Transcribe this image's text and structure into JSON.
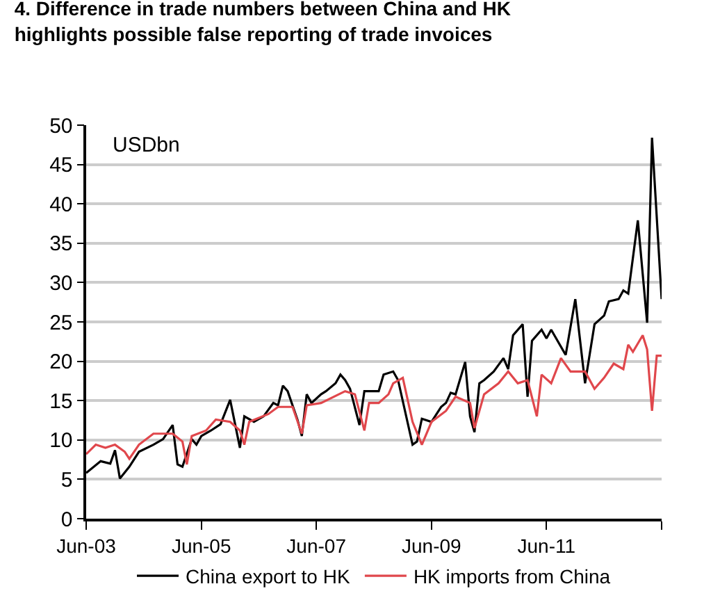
{
  "chart_data": {
    "type": "line",
    "title": "4. Difference in trade numbers between China and HK highlights possible false reporting of trade invoices",
    "annotations": [
      "USDbn"
    ],
    "series": [
      {
        "name": "China export to HK",
        "color": "#000000",
        "x": [
          "2003-06",
          "2003-09",
          "2003-11",
          "2003-12",
          "2004-01",
          "2004-03",
          "2004-05",
          "2004-08",
          "2004-10",
          "2004-12",
          "2005-01",
          "2005-02",
          "2005-04",
          "2005-05",
          "2005-06",
          "2005-08",
          "2005-10",
          "2005-12",
          "2006-02",
          "2006-03",
          "2006-05",
          "2006-07",
          "2006-09",
          "2006-10",
          "2006-11",
          "2006-12",
          "2007-02",
          "2007-03",
          "2007-04",
          "2007-05",
          "2007-07",
          "2007-08",
          "2007-10",
          "2007-11",
          "2007-12",
          "2008-01",
          "2008-03",
          "2008-04",
          "2008-07",
          "2008-08",
          "2008-10",
          "2008-11",
          "2009-02",
          "2009-03",
          "2009-04",
          "2009-06",
          "2009-08",
          "2009-09",
          "2009-10",
          "2009-11",
          "2010-01",
          "2010-02",
          "2010-03",
          "2010-04",
          "2010-05",
          "2010-07",
          "2010-09",
          "2010-10",
          "2010-11",
          "2011-01",
          "2011-02",
          "2011-03",
          "2011-05",
          "2011-06",
          "2011-07",
          "2011-10",
          "2011-12",
          "2012-02",
          "2012-04",
          "2012-06",
          "2012-07",
          "2012-09",
          "2012-10",
          "2012-11",
          "2013-01",
          "2013-03",
          "2013-04",
          "2013-06"
        ],
        "values": [
          5.8,
          7.3,
          7.0,
          8.7,
          5.1,
          6.6,
          8.5,
          9.4,
          10.1,
          11.9,
          6.9,
          6.6,
          10.1,
          9.4,
          10.5,
          11.2,
          12.0,
          15.1,
          9.0,
          13.0,
          12.3,
          13.0,
          14.7,
          14.4,
          16.9,
          16.2,
          12.6,
          10.5,
          15.8,
          14.7,
          15.8,
          16.2,
          17.2,
          18.3,
          17.6,
          16.5,
          11.9,
          16.2,
          16.2,
          18.3,
          18.7,
          17.6,
          9.4,
          9.8,
          12.7,
          12.3,
          14.2,
          14.7,
          16.0,
          15.8,
          19.9,
          13.0,
          11.0,
          17.2,
          17.6,
          18.7,
          20.4,
          19.0,
          23.3,
          24.7,
          15.5,
          22.6,
          24.0,
          22.9,
          24.0,
          20.8,
          27.9,
          17.2,
          24.7,
          25.8,
          27.6,
          27.9,
          29.0,
          28.6,
          37.9,
          24.9,
          48.4,
          27.9
        ]
      },
      {
        "name": "HK imports from China",
        "color": "#e0474c",
        "x": [
          "2003-06",
          "2003-08",
          "2003-10",
          "2003-12",
          "2004-02",
          "2004-03",
          "2004-05",
          "2004-08",
          "2004-12",
          "2005-02",
          "2005-03",
          "2005-04",
          "2005-07",
          "2005-09",
          "2005-12",
          "2006-02",
          "2006-03",
          "2006-04",
          "2006-08",
          "2006-10",
          "2007-01",
          "2007-03",
          "2007-04",
          "2007-07",
          "2007-12",
          "2008-02",
          "2008-04",
          "2008-05",
          "2008-07",
          "2008-09",
          "2008-10",
          "2008-12",
          "2009-02",
          "2009-04",
          "2009-06",
          "2009-09",
          "2009-11",
          "2010-02",
          "2010-03",
          "2010-05",
          "2010-08",
          "2010-10",
          "2010-12",
          "2011-02",
          "2011-04",
          "2011-05",
          "2011-07",
          "2011-09",
          "2011-11",
          "2012-02",
          "2012-04",
          "2012-06",
          "2012-08",
          "2012-10",
          "2012-11",
          "2012-12",
          "2013-02",
          "2013-03",
          "2013-04",
          "2013-05",
          "2013-06"
        ],
        "values": [
          8.2,
          9.4,
          9.0,
          9.4,
          8.5,
          7.6,
          9.4,
          10.8,
          10.8,
          9.8,
          6.9,
          10.5,
          11.2,
          12.6,
          12.3,
          11.2,
          9.4,
          12.3,
          13.3,
          14.2,
          14.2,
          10.8,
          14.4,
          14.7,
          16.2,
          15.8,
          11.2,
          14.7,
          14.7,
          15.8,
          17.2,
          17.9,
          12.3,
          9.4,
          12.3,
          13.7,
          15.5,
          14.7,
          11.5,
          15.8,
          17.2,
          18.7,
          17.2,
          17.6,
          13.0,
          18.3,
          17.2,
          20.4,
          18.7,
          18.7,
          16.5,
          17.9,
          19.7,
          19.0,
          22.1,
          21.2,
          23.3,
          21.5,
          13.7,
          20.7,
          20.7
        ]
      }
    ],
    "xlim": [
      "2003-06",
      "2013-06"
    ],
    "xticks": [
      {
        "value": "2003-06",
        "label": "Jun-03"
      },
      {
        "value": "2005-06",
        "label": "Jun-05"
      },
      {
        "value": "2007-06",
        "label": "Jun-07"
      },
      {
        "value": "2009-06",
        "label": "Jun-09"
      },
      {
        "value": "2011-06",
        "label": "Jun-11"
      },
      {
        "value": "2013-06",
        "label": null
      }
    ],
    "ylim": [
      0,
      50
    ],
    "yticks": [
      0,
      5,
      10,
      15,
      20,
      25,
      30,
      35,
      40,
      45,
      50
    ],
    "grid": "y",
    "legend": "bottom",
    "marker": "none",
    "line_style": "solid"
  }
}
